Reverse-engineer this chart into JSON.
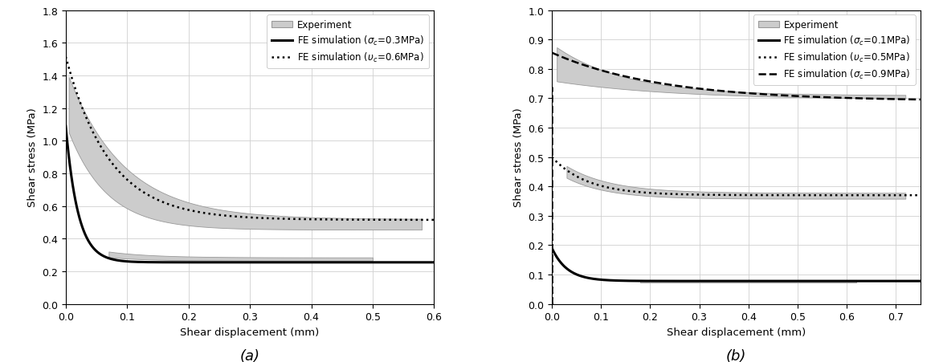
{
  "fig_width": 11.69,
  "fig_height": 4.52,
  "background_color": "#ffffff",
  "plot_a": {
    "xlabel": "Shear displacement (mm)",
    "ylabel": "Shear stress (MPa)",
    "xlim": [
      0,
      0.6
    ],
    "ylim": [
      0,
      1.8
    ],
    "yticks": [
      0,
      0.2,
      0.4,
      0.6,
      0.8,
      1.0,
      1.2,
      1.4,
      1.6,
      1.8
    ],
    "xticks": [
      0,
      0.1,
      0.2,
      0.3,
      0.4,
      0.5,
      0.6
    ],
    "subtitle": "(a)",
    "exp_fill_color": "#cccccc",
    "exp_edge_color": "#999999"
  },
  "plot_b": {
    "xlabel": "Shear displacement (mm)",
    "ylabel": "Shear stress (MPa)",
    "xlim": [
      0,
      0.75
    ],
    "ylim": [
      0,
      1.0
    ],
    "yticks": [
      0,
      0.1,
      0.2,
      0.3,
      0.4,
      0.5,
      0.6,
      0.7,
      0.8,
      0.9,
      1.0
    ],
    "xticks": [
      0,
      0.1,
      0.2,
      0.3,
      0.4,
      0.5,
      0.6,
      0.7
    ],
    "subtitle": "(b)",
    "exp_fill_color": "#cccccc",
    "exp_edge_color": "#999999"
  }
}
